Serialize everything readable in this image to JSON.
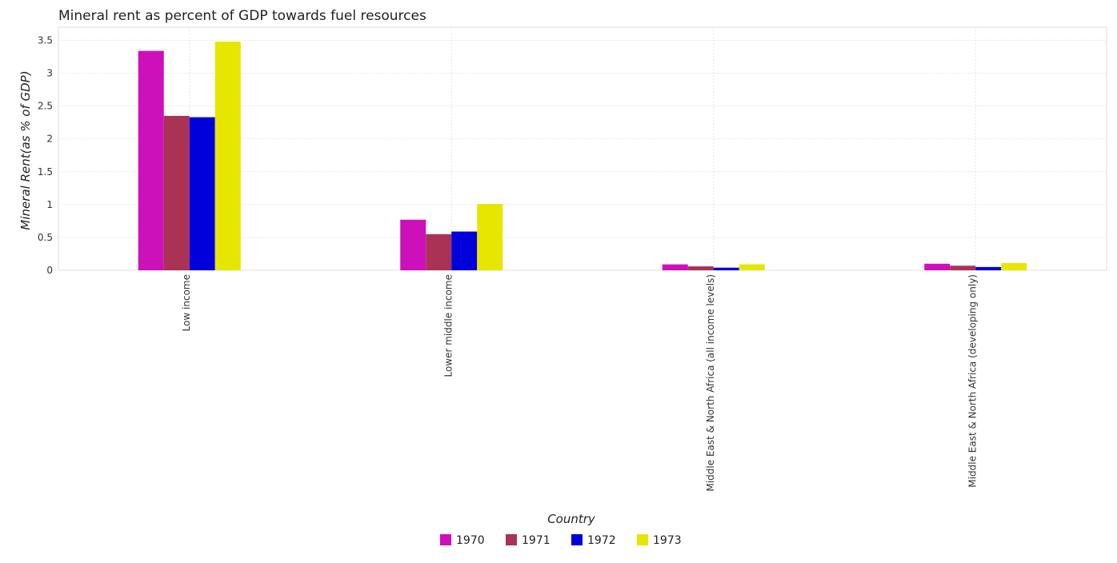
{
  "chart_data": {
    "type": "bar",
    "title": "Mineral rent as percent of GDP towards fuel resources",
    "xlabel": "Country",
    "ylabel": "Mineral Rent(as % of GDP)",
    "categories": [
      "Low income",
      "Lower middle income",
      "Middle East & North Africa (all income levels)",
      "Middle East & North Africa (developing only)"
    ],
    "series": [
      {
        "name": "1970",
        "color": "#cc11bb",
        "values": [
          3.34,
          0.77,
          0.09,
          0.1
        ]
      },
      {
        "name": "1971",
        "color": "#aa3355",
        "values": [
          2.35,
          0.55,
          0.06,
          0.07
        ]
      },
      {
        "name": "1972",
        "color": "#0000dd",
        "values": [
          2.33,
          0.59,
          0.04,
          0.05
        ]
      },
      {
        "name": "1973",
        "color": "#e6e600",
        "values": [
          3.48,
          1.01,
          0.09,
          0.11
        ]
      }
    ],
    "ylim": [
      0,
      3.7
    ],
    "yticks": [
      0,
      0.5,
      1,
      1.5,
      2,
      2.5,
      3,
      3.5
    ],
    "ytick_labels": [
      "0",
      "0.5",
      "1",
      "1.5",
      "2",
      "2.5",
      "3",
      "3.5"
    ],
    "grid": true,
    "legend_position": "bottom-center"
  }
}
